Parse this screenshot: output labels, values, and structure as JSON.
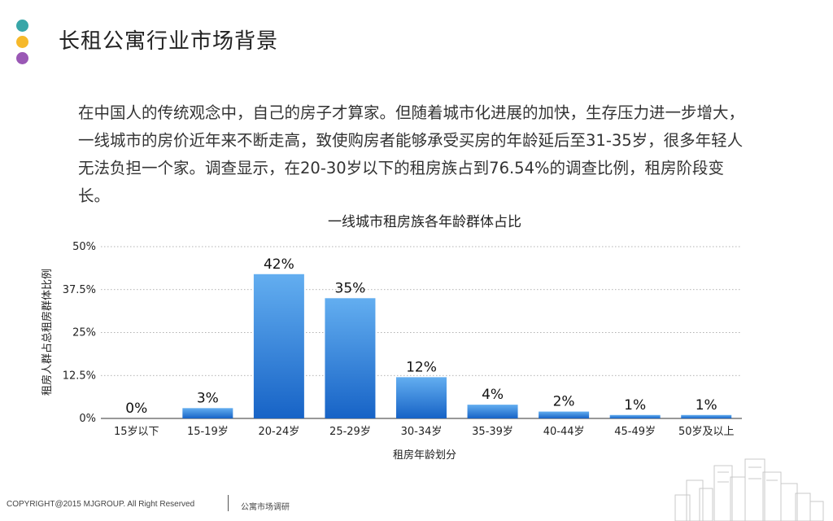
{
  "header": {
    "title": "长租公寓行业市场背景",
    "dots": [
      "#38a6a8",
      "#f6b92b",
      "#9a58b5"
    ]
  },
  "intro_text": "在中国人的传统观念中，自己的房子才算家。但随着城市化进展的加快，生存压力进一步增大，一线城市的房价近年来不断走高，致使购房者能够承受买房的年龄延后至31-35岁，很多年轻人无法负担一个家。调查显示，在20-30岁以下的租房族占到76.54%的调查比例，租房阶段变长。",
  "chart_data": {
    "type": "bar",
    "title": "一线城市租房族各年龄群体占比",
    "xlabel": "租房年龄划分",
    "ylabel": "租房人群占总租房群体比例",
    "categories": [
      "15岁以下",
      "15-19岁",
      "20-24岁",
      "25-29岁",
      "30-34岁",
      "35-39岁",
      "40-44岁",
      "45-49岁",
      "50岁及以上"
    ],
    "values": [
      0,
      3,
      42,
      35,
      12,
      4,
      2,
      1,
      1
    ],
    "data_labels": [
      "0%",
      "3%",
      "42%",
      "35%",
      "12%",
      "4%",
      "2%",
      "1%",
      "1%"
    ],
    "ylim": [
      0,
      50
    ],
    "yticks": [
      0,
      12.5,
      25,
      37.5,
      50
    ],
    "ytick_labels": [
      "0%",
      "12.5%",
      "25%",
      "37.5%",
      "50%"
    ],
    "grid": true,
    "bar_color_top": "#63aef0",
    "bar_color_bottom": "#1763c6"
  },
  "footer": {
    "copyright": "COPYRIGHT@2015 MJGROUP. All Right Reserved",
    "section": "公寓市场调研"
  }
}
